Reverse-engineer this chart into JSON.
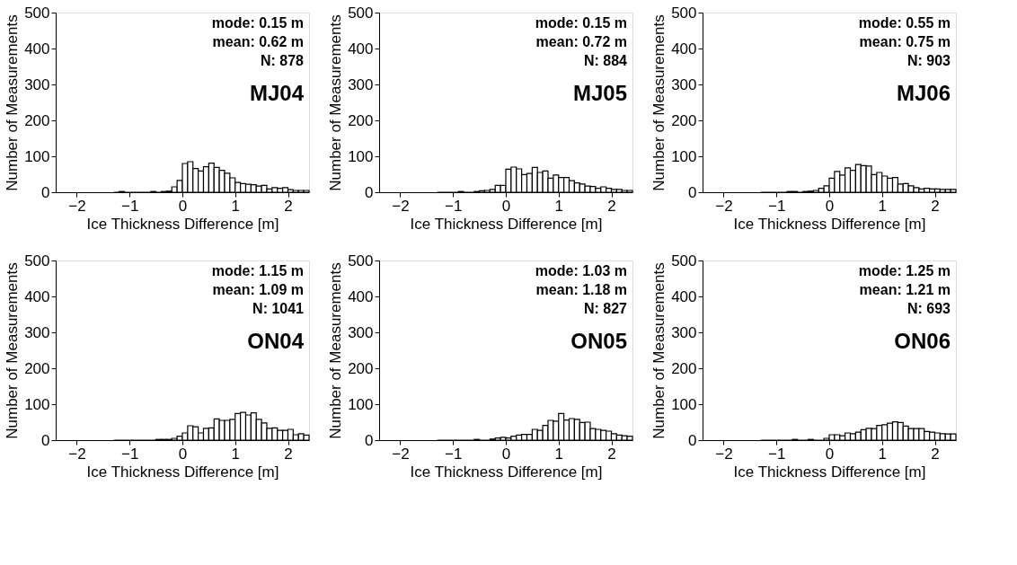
{
  "chart_data": [
    {
      "type": "histogram",
      "title": "MJ04",
      "xlabel": "Ice Thickness Difference [m]",
      "ylabel": "Number of Measurements",
      "color": "#ffffff",
      "xlim": [
        -2.4,
        2.4
      ],
      "ylim": [
        0,
        500
      ],
      "xticks": [
        -2,
        -1,
        0,
        1,
        2
      ],
      "yticks": [
        0,
        100,
        200,
        300,
        400,
        500
      ],
      "annotations": [
        "mode: 0.15 m",
        "mean: 0.62 m",
        "N: 878"
      ],
      "bins": [
        -1.3,
        -1.2,
        -1.1,
        -1.0,
        -0.9,
        -0.8,
        -0.7,
        -0.6,
        -0.5,
        -0.4,
        -0.3,
        -0.2,
        -0.1,
        0,
        0.1,
        0.2,
        0.3,
        0.4,
        0.5,
        0.6,
        0.7,
        0.8,
        0.9,
        1.0,
        1.1,
        1.2,
        1.3,
        1.4,
        1.5,
        1.6,
        1.7,
        1.8,
        1.9,
        2.0,
        2.1,
        2.2,
        2.3,
        2.4
      ],
      "values": [
        0,
        2,
        0,
        0,
        0,
        0,
        0,
        2,
        0,
        2,
        3,
        15,
        33,
        80,
        85,
        66,
        59,
        71,
        81,
        69,
        61,
        53,
        40,
        27,
        24,
        22,
        21,
        17,
        19,
        9,
        13,
        11,
        13,
        7,
        5,
        5,
        5
      ]
    },
    {
      "type": "histogram",
      "title": "MJ05",
      "xlabel": "Ice Thickness Difference [m]",
      "ylabel": "Number of Measurements",
      "color": "#ffffff",
      "xlim": [
        -2.4,
        2.4
      ],
      "ylim": [
        0,
        500
      ],
      "xticks": [
        -2,
        -1,
        0,
        1,
        2
      ],
      "yticks": [
        0,
        100,
        200,
        300,
        400,
        500
      ],
      "annotations": [
        "mode: 0.15 m",
        "mean: 0.72 m",
        "N: 884"
      ],
      "bins": [
        -1.3,
        -1.2,
        -1.1,
        -1.0,
        -0.9,
        -0.8,
        -0.7,
        -0.6,
        -0.5,
        -0.4,
        -0.3,
        -0.2,
        -0.1,
        0,
        0.1,
        0.2,
        0.3,
        0.4,
        0.5,
        0.6,
        0.7,
        0.8,
        0.9,
        1.0,
        1.1,
        1.2,
        1.3,
        1.4,
        1.5,
        1.6,
        1.7,
        1.8,
        1.9,
        2.0,
        2.1,
        2.2,
        2.3,
        2.4
      ],
      "values": [
        0,
        0,
        0,
        0,
        2,
        0,
        0,
        2,
        4,
        5,
        8,
        19,
        19,
        64,
        70,
        65,
        49,
        52,
        69,
        55,
        59,
        39,
        48,
        41,
        41,
        32,
        26,
        23,
        17,
        16,
        11,
        15,
        11,
        8,
        8,
        5,
        5
      ]
    },
    {
      "type": "histogram",
      "title": "MJ06",
      "xlabel": "Ice Thickness Difference [m]",
      "ylabel": "Number of Measurements",
      "color": "#ffffff",
      "xlim": [
        -2.4,
        2.4
      ],
      "ylim": [
        0,
        500
      ],
      "xticks": [
        -2,
        -1,
        0,
        1,
        2
      ],
      "yticks": [
        0,
        100,
        200,
        300,
        400,
        500
      ],
      "annotations": [
        "mode: 0.55 m",
        "mean: 0.75 m",
        "N: 903"
      ],
      "bins": [
        -1.3,
        -1.2,
        -1.1,
        -1.0,
        -0.9,
        -0.8,
        -0.7,
        -0.6,
        -0.5,
        -0.4,
        -0.3,
        -0.2,
        -0.1,
        0,
        0.1,
        0.2,
        0.3,
        0.4,
        0.5,
        0.6,
        0.7,
        0.8,
        0.9,
        1.0,
        1.1,
        1.2,
        1.3,
        1.4,
        1.5,
        1.6,
        1.7,
        1.8,
        1.9,
        2.0,
        2.1,
        2.2,
        2.3,
        2.4
      ],
      "values": [
        0,
        0,
        0,
        0,
        0,
        2,
        2,
        0,
        2,
        3,
        5,
        11,
        18,
        39,
        58,
        48,
        68,
        61,
        77,
        74,
        73,
        49,
        55,
        45,
        39,
        41,
        23,
        24,
        18,
        13,
        9,
        11,
        9,
        9,
        8,
        8,
        8
      ]
    },
    {
      "type": "histogram",
      "title": "ON04",
      "xlabel": "Ice Thickness Difference [m]",
      "ylabel": "Number of Measurements",
      "color": "#ffffff",
      "xlim": [
        -2.4,
        2.4
      ],
      "ylim": [
        0,
        500
      ],
      "xticks": [
        -2,
        -1,
        0,
        1,
        2
      ],
      "yticks": [
        0,
        100,
        200,
        300,
        400,
        500
      ],
      "annotations": [
        "mode: 1.15 m",
        "mean: 1.09 m",
        "N: 1041"
      ],
      "bins": [
        -1.3,
        -1.2,
        -1.1,
        -1.0,
        -0.9,
        -0.8,
        -0.7,
        -0.6,
        -0.5,
        -0.4,
        -0.3,
        -0.2,
        -0.1,
        0,
        0.1,
        0.2,
        0.3,
        0.4,
        0.5,
        0.6,
        0.7,
        0.8,
        0.9,
        1.0,
        1.1,
        1.2,
        1.3,
        1.4,
        1.5,
        1.6,
        1.7,
        1.8,
        1.9,
        2.0,
        2.1,
        2.2,
        2.3,
        2.4
      ],
      "values": [
        0,
        0,
        0,
        0,
        0,
        0,
        0,
        0,
        2,
        2,
        2,
        5,
        11,
        20,
        40,
        37,
        20,
        33,
        34,
        59,
        55,
        55,
        58,
        74,
        77,
        70,
        76,
        58,
        48,
        33,
        34,
        27,
        27,
        30,
        15,
        18,
        14
      ]
    },
    {
      "type": "histogram",
      "title": "ON05",
      "xlabel": "Ice Thickness Difference [m]",
      "ylabel": "Number of Measurements",
      "color": "#ffffff",
      "xlim": [
        -2.4,
        2.4
      ],
      "ylim": [
        0,
        500
      ],
      "xticks": [
        -2,
        -1,
        0,
        1,
        2
      ],
      "yticks": [
        0,
        100,
        200,
        300,
        400,
        500
      ],
      "annotations": [
        "mode: 1.03 m",
        "mean: 1.18 m",
        "N: 827"
      ],
      "bins": [
        -1.3,
        -1.2,
        -1.1,
        -1.0,
        -0.9,
        -0.8,
        -0.7,
        -0.6,
        -0.5,
        -0.4,
        -0.3,
        -0.2,
        -0.1,
        0,
        0.1,
        0.2,
        0.3,
        0.4,
        0.5,
        0.6,
        0.7,
        0.8,
        0.9,
        1.0,
        1.1,
        1.2,
        1.3,
        1.4,
        1.5,
        1.6,
        1.7,
        1.8,
        1.9,
        2.0,
        2.1,
        2.2,
        2.3,
        2.4
      ],
      "values": [
        0,
        0,
        0,
        0,
        0,
        0,
        0,
        2,
        0,
        0,
        3,
        6,
        8,
        6,
        11,
        14,
        16,
        16,
        30,
        27,
        41,
        55,
        53,
        74,
        56,
        60,
        58,
        49,
        50,
        32,
        30,
        27,
        25,
        18,
        14,
        12,
        11
      ]
    },
    {
      "type": "histogram",
      "title": "ON06",
      "xlabel": "Ice Thickness Difference [m]",
      "ylabel": "Number of Measurements",
      "color": "#ffffff",
      "xlim": [
        -2.4,
        2.4
      ],
      "ylim": [
        0,
        500
      ],
      "xticks": [
        -2,
        -1,
        0,
        1,
        2
      ],
      "yticks": [
        0,
        100,
        200,
        300,
        400,
        500
      ],
      "annotations": [
        "mode: 1.25 m",
        "mean: 1.21 m",
        "N: 693"
      ],
      "bins": [
        -1.3,
        -1.2,
        -1.1,
        -1.0,
        -0.9,
        -0.8,
        -0.7,
        -0.6,
        -0.5,
        -0.4,
        -0.3,
        -0.2,
        -0.1,
        0,
        0.1,
        0.2,
        0.3,
        0.4,
        0.5,
        0.6,
        0.7,
        0.8,
        0.9,
        1.0,
        1.1,
        1.2,
        1.3,
        1.4,
        1.5,
        1.6,
        1.7,
        1.8,
        1.9,
        2.0,
        2.1,
        2.2,
        2.3,
        2.4
      ],
      "values": [
        0,
        0,
        0,
        0,
        0,
        0,
        2,
        0,
        0,
        2,
        0,
        0,
        5,
        15,
        15,
        12,
        20,
        18,
        22,
        29,
        33,
        32,
        41,
        43,
        47,
        51,
        49,
        39,
        32,
        32,
        32,
        24,
        22,
        20,
        18,
        17,
        17
      ]
    }
  ]
}
